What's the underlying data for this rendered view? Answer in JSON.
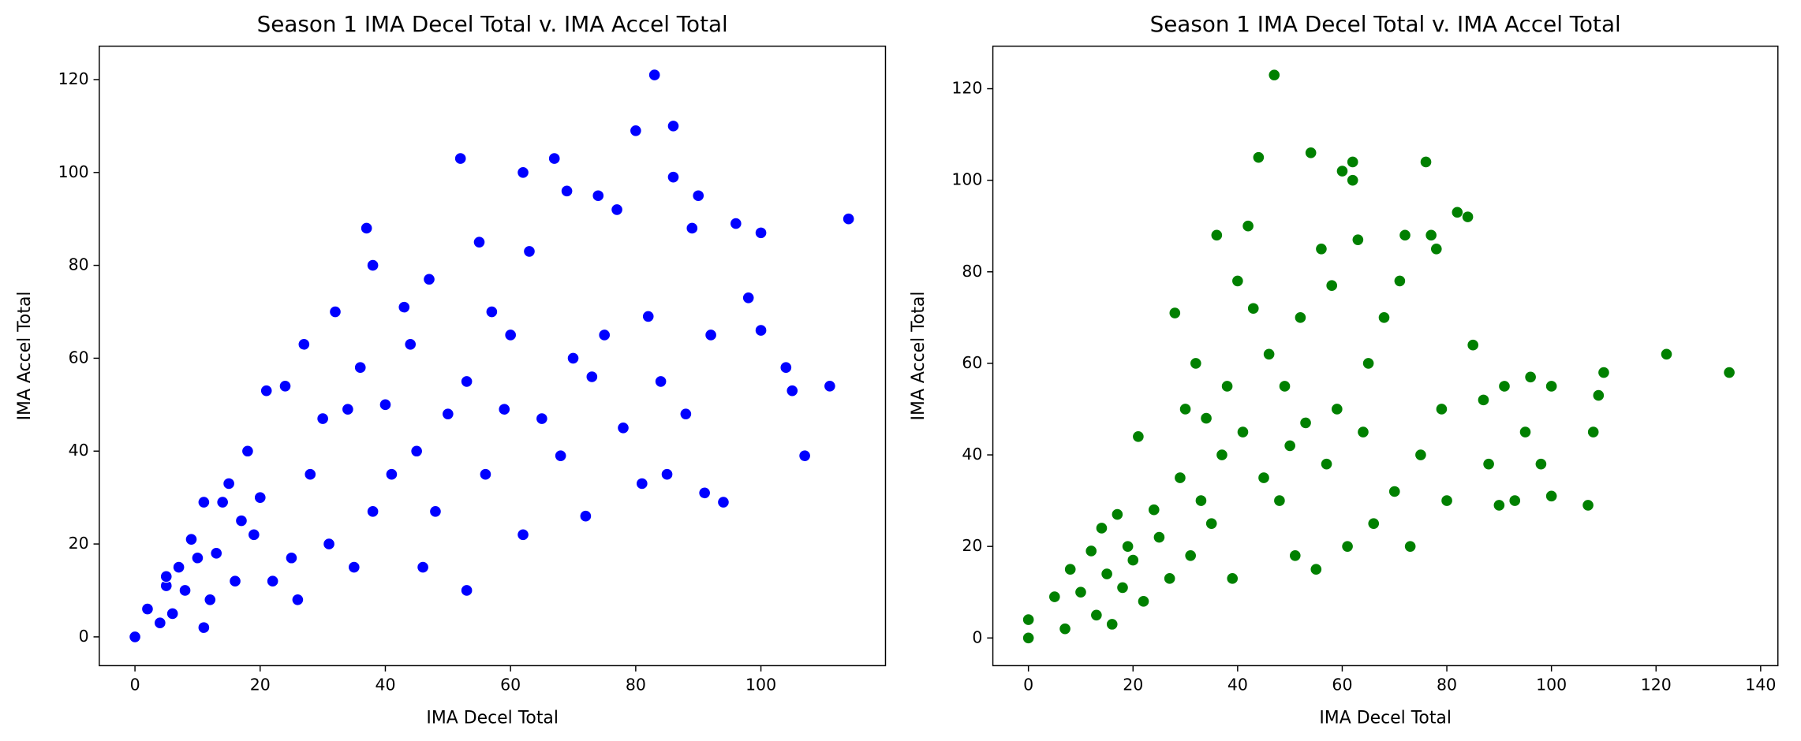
{
  "chart_data": [
    {
      "type": "scatter",
      "title": "Season 1 IMA Decel Total v. IMA Accel Total",
      "x_label": "IMA Decel Total",
      "y_label": "IMA Accel Total",
      "color": "#0000ff",
      "x": [
        0,
        2,
        4,
        5,
        5,
        6,
        7,
        8,
        9,
        10,
        11,
        11,
        12,
        13,
        14,
        15,
        16,
        17,
        18,
        19,
        20,
        21,
        22,
        24,
        25,
        26,
        27,
        28,
        30,
        31,
        32,
        34,
        35,
        36,
        37,
        38,
        38,
        40,
        41,
        43,
        44,
        45,
        46,
        47,
        48,
        50,
        52,
        53,
        53,
        55,
        56,
        57,
        59,
        60,
        62,
        62,
        63,
        65,
        67,
        68,
        69,
        70,
        72,
        73,
        74,
        75,
        77,
        78,
        80,
        81,
        82,
        83,
        84,
        85,
        86,
        86,
        88,
        89,
        90,
        91,
        92,
        94,
        96,
        98,
        100,
        100,
        104,
        105,
        107,
        111,
        114
      ],
      "values": [
        0,
        6,
        3,
        11,
        13,
        5,
        15,
        10,
        21,
        17,
        2,
        29,
        8,
        18,
        29,
        33,
        12,
        25,
        40,
        22,
        30,
        53,
        12,
        54,
        17,
        8,
        63,
        35,
        47,
        20,
        70,
        49,
        15,
        58,
        88,
        80,
        27,
        50,
        35,
        71,
        63,
        40,
        15,
        77,
        27,
        48,
        103,
        10,
        55,
        85,
        35,
        70,
        49,
        65,
        100,
        22,
        83,
        47,
        103,
        39,
        96,
        60,
        26,
        56,
        95,
        65,
        92,
        45,
        109,
        33,
        69,
        121,
        55,
        35,
        110,
        99,
        48,
        88,
        95,
        31,
        65,
        29,
        89,
        73,
        87,
        66,
        58,
        53,
        39,
        54,
        90
      ],
      "xlim": [
        -5.7,
        119.9
      ],
      "ylim": [
        -6.2,
        127.2
      ],
      "xticks": [
        0,
        20,
        40,
        60,
        80,
        100
      ],
      "yticks": [
        0,
        20,
        40,
        60,
        80,
        100,
        120
      ]
    },
    {
      "type": "scatter",
      "title": "Season 1 IMA Decel Total v. IMA Accel Total",
      "x_label": "IMA Decel Total",
      "y_label": "IMA Accel Total",
      "color": "#008000",
      "x": [
        0,
        0,
        5,
        7,
        8,
        10,
        12,
        13,
        14,
        15,
        16,
        17,
        18,
        19,
        20,
        21,
        22,
        24,
        25,
        27,
        28,
        29,
        30,
        31,
        32,
        33,
        34,
        35,
        36,
        37,
        38,
        39,
        40,
        41,
        42,
        43,
        44,
        45,
        46,
        47,
        48,
        49,
        50,
        51,
        52,
        53,
        54,
        55,
        56,
        57,
        58,
        59,
        60,
        61,
        62,
        62,
        63,
        64,
        65,
        66,
        68,
        70,
        71,
        72,
        73,
        75,
        76,
        77,
        78,
        79,
        80,
        82,
        84,
        85,
        87,
        88,
        90,
        91,
        93,
        95,
        96,
        98,
        100,
        100,
        107,
        108,
        109,
        110,
        122,
        134
      ],
      "values": [
        0,
        4,
        9,
        2,
        15,
        10,
        19,
        5,
        24,
        14,
        3,
        27,
        11,
        20,
        17,
        44,
        8,
        28,
        22,
        13,
        71,
        35,
        50,
        18,
        60,
        30,
        48,
        25,
        88,
        40,
        55,
        13,
        78,
        45,
        90,
        72,
        105,
        35,
        62,
        123,
        30,
        55,
        42,
        18,
        70,
        47,
        106,
        15,
        85,
        38,
        77,
        50,
        102,
        20,
        104,
        100,
        87,
        45,
        60,
        25,
        70,
        32,
        78,
        88,
        20,
        40,
        104,
        88,
        85,
        50,
        30,
        93,
        92,
        64,
        52,
        38,
        29,
        55,
        30,
        45,
        57,
        38,
        31,
        55,
        29,
        45,
        53,
        58,
        62,
        58
      ],
      "xlim": [
        -6.8,
        143.3
      ],
      "ylim": [
        -6.05,
        129.3
      ],
      "xticks": [
        0,
        20,
        40,
        60,
        80,
        100,
        120,
        140
      ],
      "yticks": [
        0,
        20,
        40,
        60,
        80,
        100,
        120
      ]
    }
  ]
}
